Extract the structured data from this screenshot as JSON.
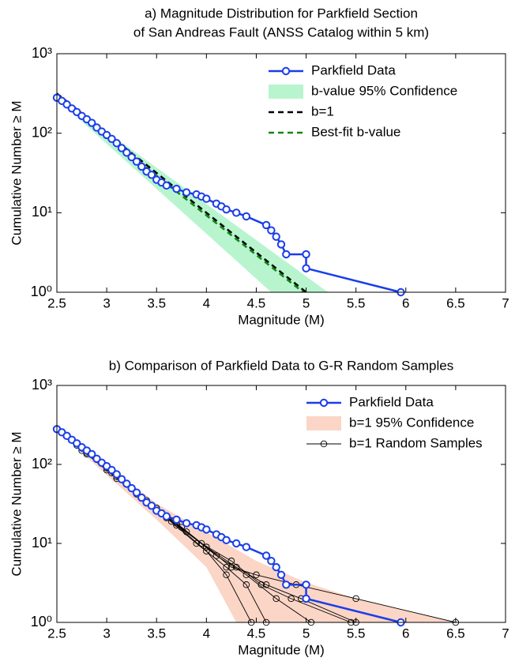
{
  "chart_data": [
    {
      "type": "line",
      "title": [
        "a) Magnitude Distribution for Parkfield Section",
        "of San Andreas Fault (ANSS Catalog within 5 km)"
      ],
      "xlabel": "Magnitude (M)",
      "ylabel": "Cumulative Number ≥ M",
      "log_scale": true,
      "legend": "upper right",
      "xlim": [
        2.5,
        7
      ],
      "xticks": [
        2.5,
        3,
        3.5,
        4,
        4.5,
        5,
        5.5,
        6,
        6.5,
        7
      ],
      "ylim": [
        1,
        1000
      ],
      "yticks": [
        {
          "value": 1,
          "label": "10⁰"
        },
        {
          "value": 10,
          "label": "10¹"
        },
        {
          "value": 100,
          "label": "10²"
        },
        {
          "value": 1000,
          "label": "10³"
        }
      ],
      "series": [
        {
          "name": "Parkfield Data",
          "color": "#1a3ee8",
          "style": "line-marker",
          "x": [
            2.5,
            2.55,
            2.6,
            2.65,
            2.7,
            2.75,
            2.8,
            2.85,
            2.9,
            2.95,
            3.0,
            3.05,
            3.1,
            3.15,
            3.2,
            3.25,
            3.3,
            3.35,
            3.4,
            3.45,
            3.5,
            3.55,
            3.6,
            3.7,
            3.8,
            3.9,
            3.95,
            4.0,
            4.1,
            4.15,
            4.2,
            4.3,
            4.4,
            4.6,
            4.65,
            4.7,
            4.75,
            4.8,
            5.0,
            5.0,
            5.95
          ],
          "values": [
            280,
            255,
            230,
            205,
            185,
            165,
            150,
            135,
            118,
            105,
            95,
            85,
            75,
            65,
            57,
            50,
            44,
            38,
            33,
            30,
            26,
            24,
            22,
            20,
            18,
            17,
            16,
            15,
            13,
            12,
            11,
            10,
            9,
            7,
            6,
            5,
            4,
            3,
            3,
            2,
            1
          ]
        },
        {
          "name": "b-value 95% Confidence",
          "color": "#b8f5cf",
          "style": "band",
          "upper": {
            "x": [
              2.5,
              5.22
            ],
            "values": [
              300,
              1
            ]
          },
          "lower": {
            "x": [
              2.5,
              4.65
            ],
            "values": [
              270,
              1
            ]
          }
        },
        {
          "name": "b=1",
          "color": "#000000",
          "style": "dashed",
          "x": [
            2.5,
            5.0
          ],
          "values": [
            316,
            1
          ]
        },
        {
          "name": "Best-fit b-value",
          "color": "#118811",
          "style": "dashed",
          "x": [
            2.5,
            4.97
          ],
          "values": [
            290,
            1
          ]
        }
      ]
    },
    {
      "type": "line",
      "title": [
        "b) Comparison of Parkfield Data to G-R Random Samples"
      ],
      "xlabel": "Magnitude (M)",
      "ylabel": "Cumulative Number ≥ M",
      "log_scale": true,
      "legend": "upper right",
      "xlim": [
        2.5,
        7
      ],
      "xticks": [
        2.5,
        3,
        3.5,
        4,
        4.5,
        5,
        5.5,
        6,
        6.5,
        7
      ],
      "ylim": [
        1,
        1000
      ],
      "yticks": [
        {
          "value": 1,
          "label": "10⁰"
        },
        {
          "value": 10,
          "label": "10¹"
        },
        {
          "value": 100,
          "label": "10²"
        },
        {
          "value": 1000,
          "label": "10³"
        }
      ],
      "series": [
        {
          "name": "Parkfield Data",
          "color": "#1a3ee8",
          "style": "line-marker",
          "x": [
            2.5,
            2.55,
            2.6,
            2.65,
            2.7,
            2.75,
            2.8,
            2.85,
            2.9,
            2.95,
            3.0,
            3.05,
            3.1,
            3.15,
            3.2,
            3.25,
            3.3,
            3.35,
            3.4,
            3.45,
            3.5,
            3.55,
            3.6,
            3.7,
            3.8,
            3.9,
            3.95,
            4.0,
            4.1,
            4.15,
            4.2,
            4.3,
            4.4,
            4.6,
            4.65,
            4.7,
            4.75,
            4.8,
            5.0,
            5.0,
            5.95
          ],
          "values": [
            280,
            255,
            230,
            205,
            185,
            165,
            150,
            135,
            118,
            105,
            95,
            85,
            75,
            65,
            57,
            50,
            44,
            38,
            33,
            30,
            26,
            24,
            22,
            20,
            18,
            17,
            16,
            15,
            13,
            12,
            11,
            10,
            9,
            7,
            6,
            5,
            4,
            3,
            3,
            2,
            1
          ]
        },
        {
          "name": "b=1 95% Confidence",
          "color": "#fbd5c6",
          "style": "band",
          "upper": {
            "x": [
              2.5,
              3.5,
              4.5,
              5.0,
              5.5,
              6.5
            ],
            "values": [
              300,
              32,
              6,
              3.2,
              2,
              1
            ]
          },
          "lower": {
            "x": [
              2.5,
              3.5,
              4.0,
              4.3
            ],
            "values": [
              270,
              20,
              5,
              1
            ]
          }
        },
        {
          "name": "b=1 Random Samples",
          "color": "#000000",
          "style": "samples",
          "samples": [
            {
              "x": [
                2.5,
                2.75,
                3.0,
                3.25,
                3.5,
                3.75,
                4.0,
                4.25,
                4.5,
                4.9,
                5.5,
                6.5
              ],
              "values": [
                280,
                160,
                90,
                50,
                28,
                16,
                9,
                5,
                4,
                3,
                2,
                1
              ]
            },
            {
              "x": [
                2.5,
                2.8,
                3.1,
                3.4,
                3.7,
                4.0,
                4.2,
                4.45
              ],
              "values": [
                280,
                140,
                70,
                35,
                17,
                8,
                4,
                1
              ]
            },
            {
              "x": [
                2.5,
                2.7,
                3.0,
                3.3,
                3.6,
                3.9,
                4.2,
                4.4,
                4.6
              ],
              "values": [
                280,
                175,
                85,
                42,
                21,
                10,
                5,
                3,
                1
              ]
            },
            {
              "x": [
                2.5,
                2.9,
                3.2,
                3.5,
                3.8,
                4.1,
                4.4,
                4.7,
                5.05
              ],
              "values": [
                280,
                115,
                58,
                28,
                14,
                7,
                4,
                2,
                1
              ]
            },
            {
              "x": [
                2.5,
                2.8,
                3.1,
                3.4,
                3.7,
                4.0,
                4.3,
                4.6,
                4.95,
                5.5
              ],
              "values": [
                280,
                135,
                66,
                33,
                18,
                9,
                5,
                3,
                2,
                1
              ]
            },
            {
              "x": [
                2.5,
                2.75,
                3.05,
                3.35,
                3.65,
                3.95,
                4.25,
                4.55,
                4.85,
                5.45
              ],
              "values": [
                280,
                150,
                78,
                38,
                19,
                10,
                6,
                3,
                2,
                1
              ]
            }
          ]
        }
      ]
    }
  ]
}
